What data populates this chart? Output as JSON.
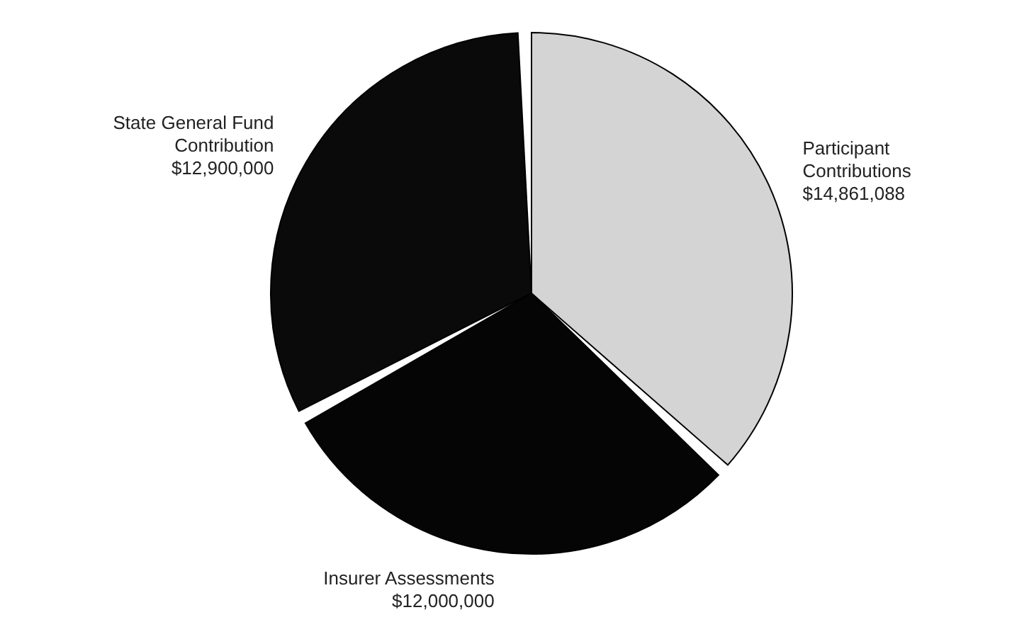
{
  "chart_data": {
    "type": "pie",
    "categories": [
      "Participant Contributions",
      "Insurer Assessments",
      "State General Fund Contribution"
    ],
    "values": [
      14861088,
      12000000,
      12900000
    ],
    "value_labels": [
      "$14,861,088",
      "$12,000,000",
      "$12,900,000"
    ],
    "colors": [
      "#d4d4d4",
      "#050505",
      "#0a0a0a"
    ]
  }
}
